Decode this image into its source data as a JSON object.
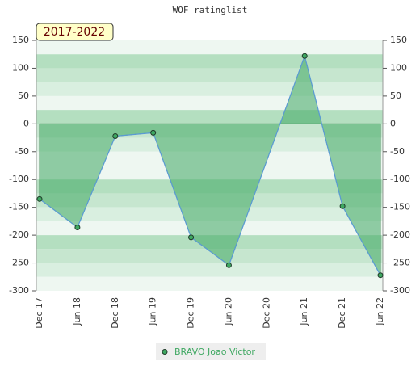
{
  "chart_data": {
    "type": "area-line",
    "title": "WOF ratinglist",
    "subtitle": "2017-2022",
    "categories": [
      "Dec 17",
      "Jun 18",
      "Dec 18",
      "Jun 19",
      "Dec 19",
      "Jun 20",
      "Dec 20",
      "Jun 21",
      "Dec 21",
      "Jun 22"
    ],
    "series": [
      {
        "name": "BRAVO Joao Victor",
        "color": "#3fa862",
        "x": [
          "Dec 17",
          "Jun 18",
          "Dec 18",
          "Jun 19",
          "Dec 19",
          "Jun 20",
          "Jun 21",
          "Dec 21",
          "Jun 22"
        ],
        "values": [
          -135,
          -186,
          -22,
          -16,
          -204,
          -254,
          122,
          -148,
          -272
        ]
      }
    ],
    "ylim": [
      -300,
      150
    ],
    "yticks": [
      -300,
      -250,
      -200,
      -150,
      -100,
      -50,
      0,
      50,
      100,
      150
    ]
  }
}
